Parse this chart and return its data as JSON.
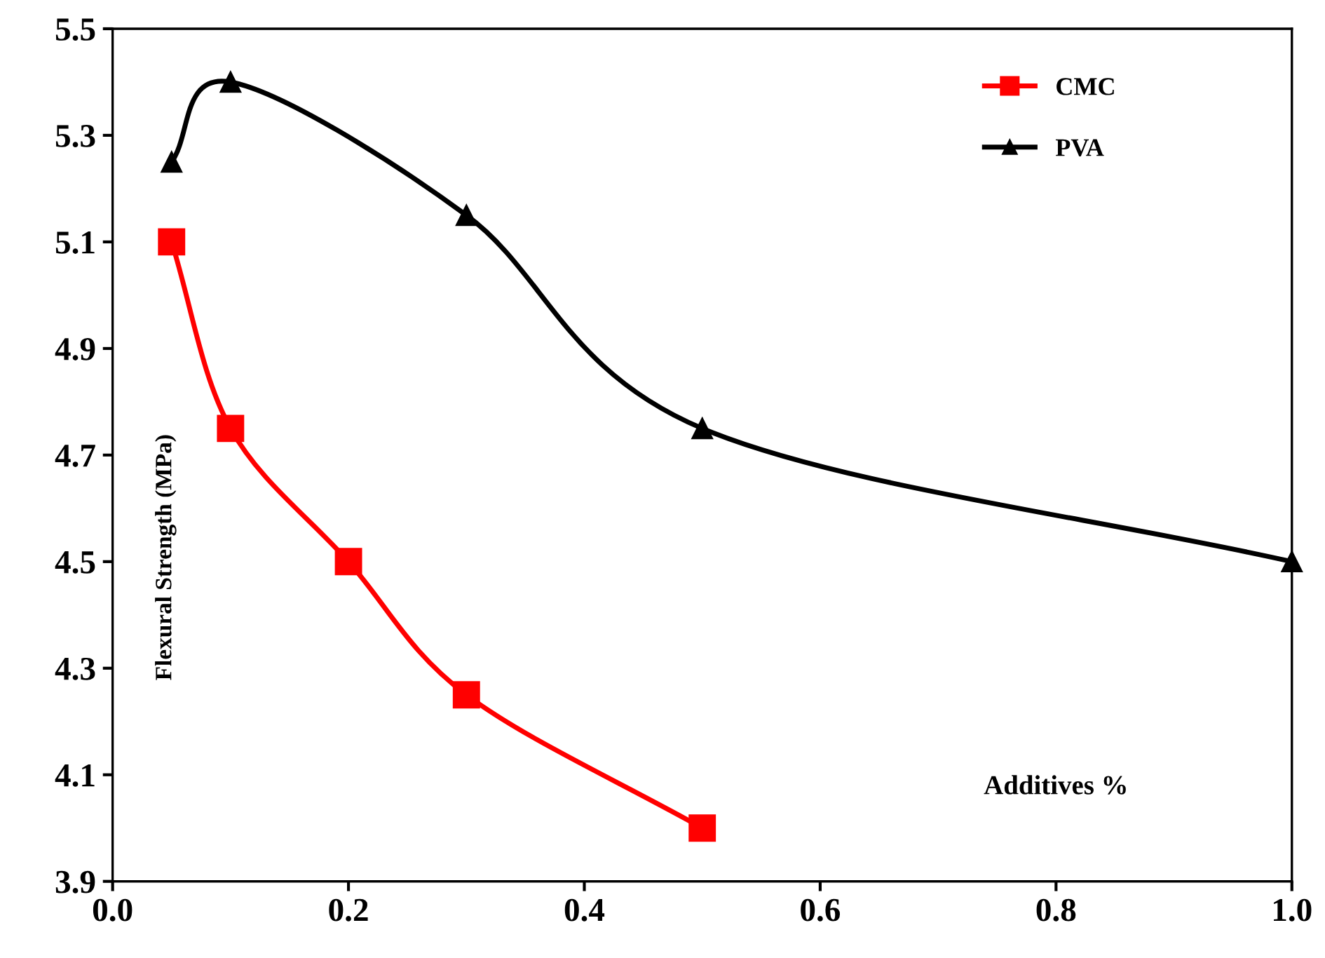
{
  "chart_data": {
    "type": "line",
    "xlabel": "Additives %",
    "ylabel": "Flexural Strength (MPa)",
    "series": [
      {
        "name": "CMC",
        "color": "#ff0000",
        "marker": "square",
        "x": [
          0.05,
          0.1,
          0.2,
          0.3,
          0.5
        ],
        "values": [
          5.1,
          4.75,
          4.5,
          4.25,
          4.0
        ]
      },
      {
        "name": "PVA",
        "color": "#000000",
        "marker": "triangle",
        "x": [
          0.05,
          0.1,
          0.3,
          0.5,
          1.0
        ],
        "values": [
          5.25,
          5.4,
          5.15,
          4.75,
          4.5
        ]
      }
    ],
    "xlim": [
      0,
      1
    ],
    "xticks": [
      {
        "value": 0,
        "label": "0.0"
      },
      0.2,
      0.4,
      0.6,
      0.8,
      {
        "value": 1,
        "label": "1.0"
      }
    ],
    "ylim": [
      3.9,
      5.5
    ],
    "yticks": [
      3.9,
      4.1,
      4.3,
      4.5,
      4.7,
      4.9,
      5.1,
      5.3,
      5.5
    ],
    "grid": false,
    "legend": "top right",
    "line_style": "solid"
  }
}
